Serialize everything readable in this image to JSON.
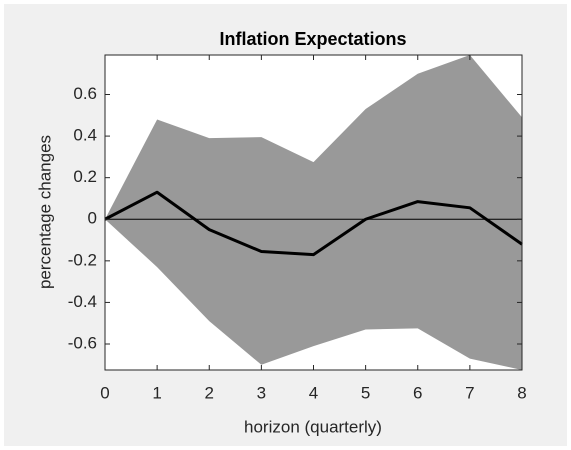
{
  "chart_data": {
    "type": "line",
    "title": "Inflation Expectations",
    "xlabel": "horizon (quarterly)",
    "ylabel": "percentage changes",
    "x": [
      0,
      1,
      2,
      3,
      4,
      5,
      6,
      7,
      8
    ],
    "band": {
      "color": "#999999",
      "upper": [
        0,
        0.48,
        0.39,
        0.395,
        0.275,
        0.53,
        0.7,
        0.79,
        0.49
      ],
      "lower": [
        0,
        -0.23,
        -0.49,
        -0.7,
        -0.61,
        -0.53,
        -0.525,
        -0.67,
        -0.725
      ]
    },
    "series": [
      {
        "color": "#000000",
        "values": [
          0,
          0.13,
          -0.05,
          -0.155,
          -0.17,
          0,
          0.085,
          0.055,
          -0.12
        ]
      }
    ],
    "reference_line": 0,
    "xlim": [
      0,
      8
    ],
    "xticks": [
      0,
      1,
      2,
      3,
      4,
      5,
      6,
      7,
      8
    ],
    "ylim": [
      -0.725,
      0.79
    ],
    "yticks": [
      -0.6,
      -0.4,
      -0.2,
      0,
      0.2,
      0.4,
      0.6
    ],
    "grid": false
  }
}
